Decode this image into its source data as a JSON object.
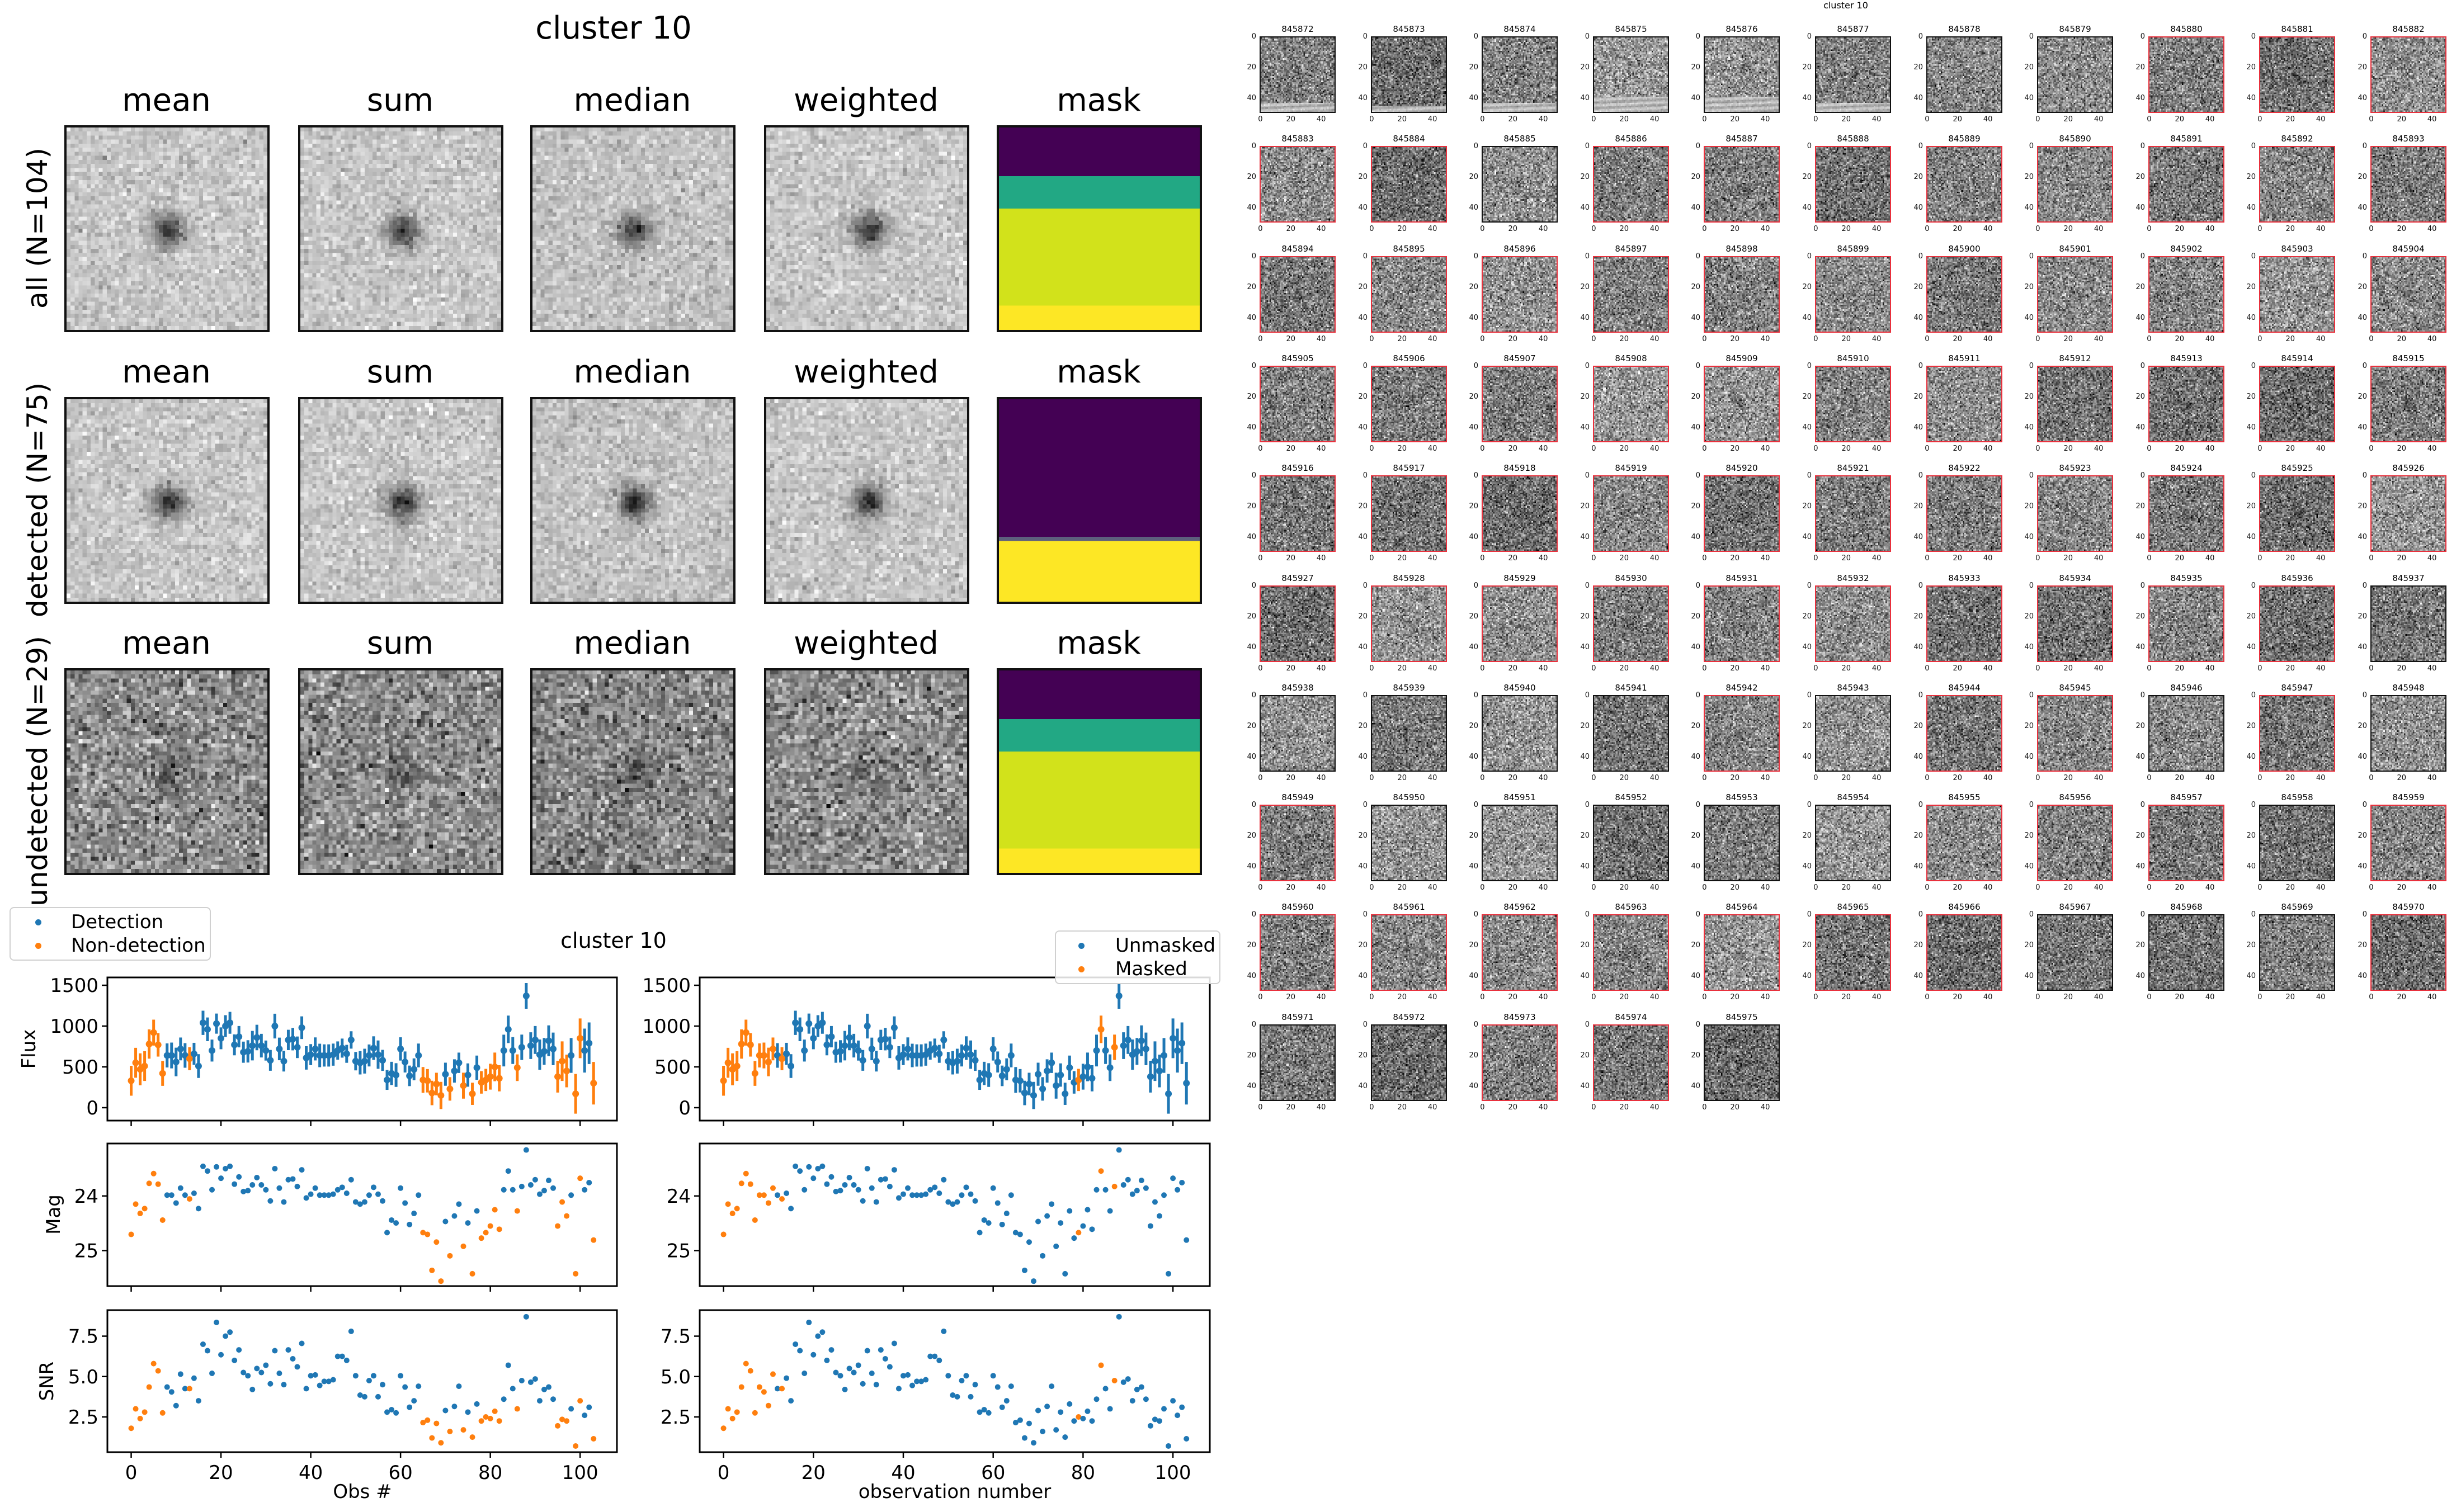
{
  "stack_panels": {
    "title": "cluster 10",
    "columns": [
      "mean",
      "sum",
      "median",
      "weighted",
      "mask"
    ],
    "rows": [
      {
        "label": "all (N=104)"
      },
      {
        "label": "detected (N=75)"
      },
      {
        "label": "undetected (N=29)"
      }
    ],
    "colormap_colors": {
      "purple": "#440154",
      "teal": "#22a884",
      "lime": "#d2e21b",
      "yellow": "#fde725"
    }
  },
  "chart_data": {
    "type": "scatter",
    "title": "cluster 10",
    "x_label_left": "Obs #",
    "x_label_right": "observation number",
    "xlim": [
      -5.3,
      108.2
    ],
    "x_ticks": [
      "0",
      "20",
      "40",
      "60",
      "80",
      "100"
    ],
    "panels": [
      {
        "ylabel": "Flux",
        "ylim": [
          -158,
          1596
        ],
        "inverted": false,
        "ticks": [
          "0",
          "500",
          "1000",
          "1500"
        ]
      },
      {
        "ylabel": "Mag",
        "ylim": [
          23.04,
          25.65
        ],
        "inverted": true,
        "ticks": [
          "24",
          "25"
        ]
      },
      {
        "ylabel": "SNR",
        "ylim": [
          0.32,
          9.11
        ],
        "inverted": false,
        "ticks": [
          "2.5",
          "5.0",
          "7.5"
        ]
      }
    ],
    "mag_zeropoint": 31.0,
    "colors": {
      "blue": "#1f77b4",
      "orange": "#ff7f0e"
    },
    "legend_left": [
      "Detection",
      "Non-detection"
    ],
    "legend_right": [
      "Unmasked",
      "Masked"
    ],
    "flux": [
      330,
      550,
      470,
      510,
      780,
      920,
      770,
      420,
      640,
      640,
      560,
      720,
      640,
      600,
      660,
      510,
      1040,
      960,
      700,
      1030,
      850,
      1000,
      1040,
      770,
      870,
      680,
      690,
      760,
      860,
      760,
      700,
      580,
      1000,
      720,
      570,
      830,
      840,
      740,
      980,
      610,
      650,
      720,
      640,
      640,
      640,
      650,
      700,
      730,
      660,
      830,
      570,
      550,
      570,
      640,
      730,
      650,
      580,
      340,
      420,
      400,
      720,
      560,
      390,
      470,
      640,
      340,
      330,
      180,
      290,
      150,
      410,
      230,
      450,
      550,
      270,
      400,
      170,
      490,
      310,
      340,
      380,
      500,
      360,
      700,
      960,
      700,
      490,
      740,
      1370,
      760,
      830,
      650,
      690,
      820,
      720,
      380,
      570,
      450,
      640,
      170,
      850,
      700,
      790,
      300
    ],
    "snr": [
      1.8,
      3.0,
      2.4,
      2.8,
      4.35,
      5.8,
      5.35,
      2.75,
      4.35,
      4.05,
      3.2,
      5.15,
      4.25,
      4.25,
      4.9,
      3.5,
      7.0,
      6.6,
      5.2,
      8.35,
      6.35,
      7.5,
      7.75,
      6.0,
      6.65,
      5.25,
      5.05,
      4.2,
      5.5,
      5.25,
      5.7,
      4.55,
      6.6,
      5.2,
      4.5,
      6.65,
      6.1,
      5.6,
      7.05,
      4.25,
      5.05,
      5.1,
      4.45,
      4.7,
      4.7,
      4.8,
      6.25,
      6.25,
      6.0,
      7.8,
      5.05,
      3.85,
      3.75,
      4.75,
      5.05,
      3.75,
      4.5,
      2.8,
      2.95,
      2.75,
      5.05,
      4.35,
      3.1,
      3.5,
      4.4,
      2.15,
      2.3,
      1.2,
      2.1,
      0.9,
      2.9,
      1.6,
      3.15,
      4.4,
      1.7,
      2.8,
      1.25,
      3.3,
      2.25,
      2.5,
      2.4,
      2.85,
      2.25,
      3.6,
      5.7,
      4.25,
      3.0,
      4.75,
      8.7,
      4.65,
      4.85,
      3.5,
      4.2,
      4.35,
      3.6,
      1.95,
      2.35,
      2.25,
      3.0,
      0.7,
      3.5,
      2.6,
      3.1,
      1.15
    ],
    "nondetection_indices": [
      0,
      1,
      2,
      3,
      4,
      5,
      6,
      7,
      13,
      65,
      66,
      67,
      68,
      69,
      71,
      74,
      76,
      78,
      79,
      80,
      81,
      82,
      86,
      95,
      96,
      97,
      99,
      100,
      103
    ],
    "masked_indices": [
      0,
      1,
      2,
      3,
      4,
      5,
      6,
      7,
      8,
      9,
      10,
      11,
      13,
      79,
      84,
      87
    ]
  },
  "thumbnails": {
    "suptitle": "cluster 10",
    "ticks": [
      "0",
      "20",
      "40"
    ],
    "ids": [
      "845872",
      "845873",
      "845874",
      "845875",
      "845876",
      "845877",
      "845878",
      "845879",
      "845880",
      "845881",
      "845882",
      "845883",
      "845884",
      "845885",
      "845886",
      "845887",
      "845888",
      "845889",
      "845890",
      "845891",
      "845892",
      "845893",
      "845894",
      "845895",
      "845896",
      "845897",
      "845898",
      "845899",
      "845900",
      "845901",
      "845902",
      "845903",
      "845904",
      "845905",
      "845906",
      "845907",
      "845908",
      "845909",
      "845910",
      "845911",
      "845912",
      "845913",
      "845914",
      "845915",
      "845916",
      "845917",
      "845918",
      "845919",
      "845920",
      "845921",
      "845922",
      "845923",
      "845924",
      "845925",
      "845926",
      "845927",
      "845928",
      "845929",
      "845930",
      "845931",
      "845932",
      "845933",
      "845934",
      "845935",
      "845936",
      "845937",
      "845938",
      "845939",
      "845940",
      "845941",
      "845942",
      "845943",
      "845944",
      "845945",
      "845946",
      "845947",
      "845948",
      "845949",
      "845950",
      "845951",
      "845952",
      "845953",
      "845954",
      "845955",
      "845956",
      "845957",
      "845958",
      "845959",
      "845960",
      "845961",
      "845962",
      "845963",
      "845964",
      "845965",
      "845966",
      "845967",
      "845968",
      "845969",
      "845970",
      "845971",
      "845972",
      "845973",
      "845974",
      "845975"
    ],
    "red_outlined": [
      0,
      0,
      0,
      0,
      0,
      0,
      0,
      0,
      1,
      1,
      1,
      1,
      1,
      0,
      1,
      1,
      1,
      1,
      1,
      1,
      1,
      1,
      1,
      1,
      1,
      1,
      1,
      1,
      1,
      1,
      1,
      1,
      1,
      1,
      1,
      1,
      1,
      1,
      1,
      1,
      1,
      1,
      1,
      1,
      1,
      1,
      1,
      1,
      1,
      1,
      1,
      1,
      1,
      1,
      1,
      1,
      1,
      1,
      1,
      1,
      1,
      1,
      1,
      1,
      1,
      0,
      0,
      0,
      0,
      0,
      1,
      0,
      1,
      1,
      0,
      1,
      0,
      1,
      0,
      0,
      0,
      0,
      0,
      1,
      1,
      1,
      0,
      1,
      1,
      1,
      1,
      1,
      1,
      1,
      1,
      0,
      0,
      0,
      1,
      0,
      0,
      1,
      1,
      0
    ],
    "outline_color": "#e8303c"
  }
}
